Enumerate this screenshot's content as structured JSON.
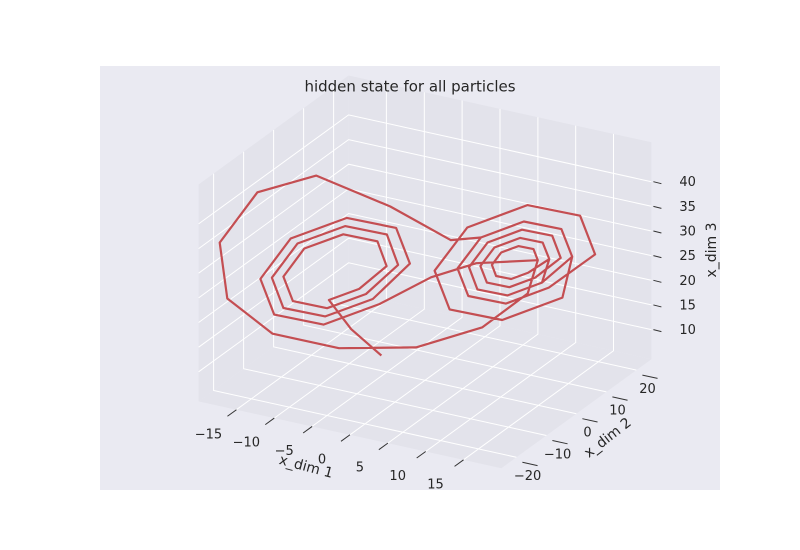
{
  "chart_data": {
    "type": "line3d",
    "title": "hidden state for all particles",
    "xlabel": "x_dim 1",
    "ylabel": "x_dim 2",
    "zlabel": "x_dim 3",
    "color": "#c44e52",
    "xlim": [
      -20,
      20
    ],
    "ylim": [
      -25,
      25
    ],
    "zlim": [
      4,
      48
    ],
    "xticks": [
      {
        "value": -15,
        "label": "−15"
      },
      {
        "value": -10,
        "label": "−10"
      },
      {
        "value": -5,
        "label": "−5"
      },
      0,
      5,
      10,
      15
    ],
    "yticks": [
      {
        "value": -20,
        "label": "−20"
      },
      {
        "value": -10,
        "label": "−10"
      },
      0,
      10,
      20
    ],
    "zticks": [
      10,
      15,
      20,
      25,
      30,
      35,
      40
    ],
    "x": [
      -1,
      -5,
      -8.5,
      -6.0,
      -4.0,
      -5.3,
      -8.5,
      -11.7,
      -13.0,
      -11.7,
      -8.5,
      -5.3,
      -3.0,
      -4.6,
      -8.5,
      -12.4,
      -14.0,
      -12.4,
      -8.5,
      -4.6,
      -2.0,
      -3.9,
      -8.5,
      -13.1,
      -15.0,
      -13.1,
      -8.5,
      -3.9,
      0,
      4,
      10.5,
      9.9,
      8.5,
      7.1,
      6.5,
      7.1,
      8.5,
      9.9,
      11.5,
      10.6,
      8.5,
      6.4,
      5.5,
      6.4,
      8.5,
      10.6,
      12.5,
      11.3,
      8.5,
      5.7,
      4.5,
      5.7,
      8.5,
      11.3,
      11.5,
      10.6,
      8.5,
      6.4,
      5.5,
      6.4,
      8.5,
      10.6,
      12.5,
      11.3,
      8.5,
      5.7,
      4.5,
      5.7,
      8.5,
      11.3,
      13.5,
      12.0,
      8.5,
      5.0,
      3.5,
      5.0,
      8.5,
      12.0,
      15.5,
      13.4,
      8.5,
      3.6,
      1.5,
      3.6,
      8.5,
      13.4,
      13.5,
      12.0,
      8.5,
      5.0,
      3,
      -3,
      -10,
      -15,
      -18,
      -17,
      -13,
      -7,
      0,
      6,
      10,
      10.5,
      9.9,
      8.5,
      7.1,
      6.5,
      7.1,
      8.5,
      9.9,
      11.5,
      10.6,
      8.5,
      6.4,
      5.5,
      6.4,
      8.5,
      10.6
    ],
    "y": [
      -12,
      -12,
      -10.6,
      -6.8,
      -2.7,
      -2.5,
      -5.8,
      -10.7,
      -14.4,
      -14.5,
      -11.2,
      -6.3,
      -1.4,
      -1.1,
      -5.2,
      -11.2,
      -15.7,
      -15.9,
      -11.8,
      -5.8,
      0,
      0.2,
      -4.6,
      -11.7,
      -17.0,
      -17.2,
      -12.4,
      -5.3,
      2,
      7,
      11.1,
      11.2,
      9.7,
      7.5,
      5.9,
      5.8,
      7.3,
      9.5,
      12.4,
      12.5,
      10.3,
      7.0,
      4.6,
      4.5,
      6.7,
      10.0,
      13.7,
      13.9,
      10.9,
      6.5,
      3.3,
      3.1,
      6.1,
      10.5,
      12.4,
      12.5,
      10.3,
      7.0,
      4.6,
      4.5,
      6.7,
      10.0,
      13.7,
      13.9,
      10.9,
      6.5,
      3.3,
      3.1,
      6.1,
      10.5,
      15.0,
      15.2,
      11.5,
      6.0,
      2.0,
      1.8,
      5.5,
      11.0,
      17.6,
      17.9,
      12.7,
      5.0,
      -0.6,
      -0.9,
      4.3,
      12.0,
      15.0,
      15.2,
      11.5,
      6.0,
      1,
      -4,
      -11,
      -18,
      -23,
      -23,
      -18,
      -11,
      -3,
      4,
      9,
      11.1,
      11.2,
      9.7,
      7.5,
      5.9,
      5.8,
      7.3,
      9.5,
      12.4,
      12.5,
      10.3,
      7.0,
      4.6,
      4.5,
      6.7,
      10.0
    ],
    "z": [
      14,
      18,
      22.1,
      23.5,
      27,
      31.5,
      33.3,
      31.5,
      27,
      22.5,
      20.7,
      22.5,
      27,
      32.5,
      34.7,
      32.5,
      27,
      21.5,
      19.3,
      21.5,
      27,
      33.5,
      36.1,
      33.5,
      27,
      20.5,
      17.9,
      20.5,
      24,
      26,
      27,
      29,
      29.8,
      29,
      27,
      25,
      24.2,
      25,
      27,
      30,
      31.2,
      30,
      27,
      24,
      22.8,
      24,
      27,
      31,
      32.6,
      31,
      27,
      23,
      21.4,
      23,
      27,
      30,
      31.2,
      30,
      27,
      24,
      22.8,
      24,
      27,
      31,
      32.6,
      31,
      27,
      23,
      21.4,
      23,
      27,
      32,
      34,
      32,
      27,
      22,
      20,
      22,
      27,
      34,
      36.8,
      34,
      27,
      20,
      17.2,
      20,
      27,
      32,
      34,
      32,
      33,
      40,
      47,
      45,
      36,
      25,
      17,
      13,
      12,
      15,
      21,
      27,
      29,
      29.8,
      29,
      27,
      25,
      24.2,
      25,
      27,
      30,
      31.2,
      30,
      27,
      24,
      22.8,
      24
    ]
  }
}
